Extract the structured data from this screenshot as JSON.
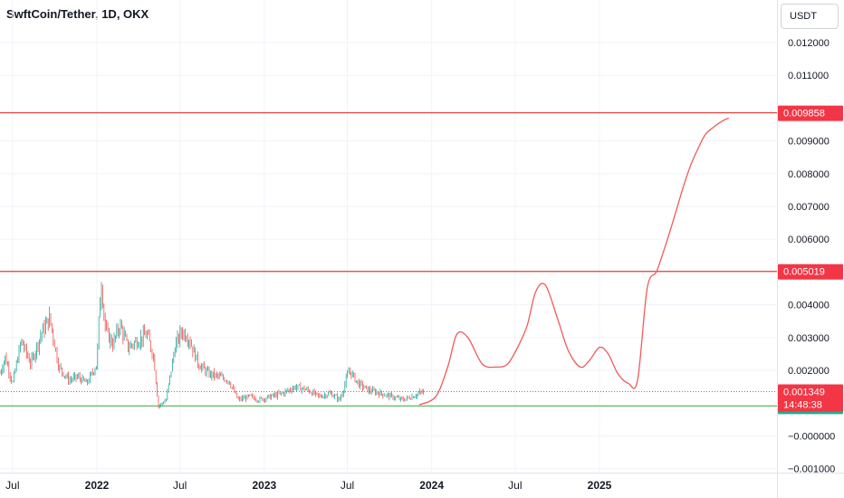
{
  "header": {
    "symbol_title": "SwftCoin/Tether, 1D, OKX",
    "currency_button": "USDT"
  },
  "colors": {
    "level_line": "#e53935",
    "support_line": "#4caf50",
    "candle_up": "#26a69a",
    "candle_down": "#ef5350",
    "projection": "#f05a5a",
    "price_tag_red": "#f23645",
    "price_tag_green": "#22ab94"
  },
  "chart_data": {
    "type": "line",
    "title": "SwftCoin/Tether, 1D, OKX",
    "ylim": [
      -0.00115,
      0.0133
    ],
    "y_ticks": [
      "0.012000",
      "0.011000",
      "0.009000",
      "0.008000",
      "0.007000",
      "0.006000",
      "0.004000",
      "0.003000",
      "0.002000",
      "−0.000000",
      "−0.001000"
    ],
    "y_tick_values": [
      0.012,
      0.011,
      0.009,
      0.008,
      0.007,
      0.006,
      0.004,
      0.003,
      0.002,
      0.0,
      -0.001
    ],
    "x_ticks": [
      {
        "label": "Jul",
        "date": "2021-07-01"
      },
      {
        "label": "2022",
        "date": "2022-01-01"
      },
      {
        "label": "Jul",
        "date": "2022-07-01"
      },
      {
        "label": "2023",
        "date": "2023-01-01"
      },
      {
        "label": "Jul",
        "date": "2023-07-01"
      },
      {
        "label": "2024",
        "date": "2024-01-01"
      },
      {
        "label": "Jul",
        "date": "2024-07-01"
      },
      {
        "label": "2025",
        "date": "2025-01-01"
      }
    ],
    "horizontal_levels": [
      {
        "value": 0.009858,
        "label": "0.009858",
        "kind": "resistance"
      },
      {
        "value": 0.005019,
        "label": "0.005019",
        "kind": "resistance"
      },
      {
        "value": 0.000913,
        "label": "0.000913",
        "kind": "support"
      }
    ],
    "last_price": {
      "value": 0.001349,
      "label": "0.001349",
      "countdown": "14:48:38"
    },
    "price_series": {
      "name": "",
      "x": [
        "2021-05-15",
        "2021-06-01",
        "2021-06-15",
        "2021-07-01",
        "2021-07-20",
        "2021-08-10",
        "2021-09-01",
        "2021-09-20",
        "2021-10-10",
        "2021-11-01",
        "2021-11-20",
        "2021-12-10",
        "2022-01-01",
        "2022-01-10",
        "2022-01-20",
        "2022-02-05",
        "2022-02-20",
        "2022-03-10",
        "2022-03-30",
        "2022-04-20",
        "2022-05-05",
        "2022-05-15",
        "2022-06-01",
        "2022-06-20",
        "2022-07-05",
        "2022-07-20",
        "2022-08-10",
        "2022-09-01",
        "2022-09-25",
        "2022-10-15",
        "2022-11-05",
        "2022-12-01",
        "2022-12-20",
        "2023-01-15",
        "2023-02-10",
        "2023-03-10",
        "2023-04-05",
        "2023-05-01",
        "2023-05-25",
        "2023-06-15",
        "2023-07-05",
        "2023-07-25",
        "2023-08-15",
        "2023-09-10",
        "2023-10-05",
        "2023-10-30",
        "2023-11-20",
        "2023-12-05",
        "2023-12-15"
      ],
      "y": [
        0.0022,
        0.0018,
        0.0024,
        0.0016,
        0.0029,
        0.0022,
        0.0031,
        0.0036,
        0.0021,
        0.0017,
        0.0018,
        0.0016,
        0.0022,
        0.0048,
        0.0032,
        0.0028,
        0.0034,
        0.0027,
        0.0029,
        0.0031,
        0.0024,
        0.0009,
        0.0011,
        0.0027,
        0.0032,
        0.003,
        0.0022,
        0.0019,
        0.0018,
        0.0017,
        0.0011,
        0.0012,
        0.0011,
        0.0012,
        0.0013,
        0.0015,
        0.0014,
        0.0012,
        0.0013,
        0.0011,
        0.002,
        0.0016,
        0.0014,
        0.0013,
        0.0012,
        0.0011,
        0.0012,
        0.0013,
        0.001349
      ]
    },
    "projection_series": {
      "name": "",
      "x": [
        "2023-12-05",
        "2024-01-10",
        "2024-02-05",
        "2024-02-25",
        "2024-03-20",
        "2024-04-20",
        "2024-05-20",
        "2024-06-15",
        "2024-07-10",
        "2024-07-28",
        "2024-08-15",
        "2024-09-05",
        "2024-10-01",
        "2024-10-25",
        "2024-11-20",
        "2024-12-10",
        "2025-01-01",
        "2025-01-20",
        "2025-02-10",
        "2025-03-05",
        "2025-03-25",
        "2025-04-15",
        "2025-05-05",
        "2025-05-20",
        "2025-06-05",
        "2025-06-20",
        "2025-07-05",
        "2025-07-20",
        "2025-08-05",
        "2025-08-20",
        "2025-09-05",
        "2025-09-25",
        "2025-10-10"
      ],
      "y": [
        0.00095,
        0.0012,
        0.0021,
        0.0031,
        0.003,
        0.0022,
        0.0021,
        0.0022,
        0.0028,
        0.0034,
        0.0044,
        0.0046,
        0.0036,
        0.0026,
        0.0021,
        0.0023,
        0.0027,
        0.0025,
        0.0019,
        0.0016,
        0.0017,
        0.0045,
        0.005,
        0.0056,
        0.0063,
        0.007,
        0.0077,
        0.0083,
        0.0088,
        0.0092,
        0.0094,
        0.0096,
        0.0097
      ]
    }
  }
}
